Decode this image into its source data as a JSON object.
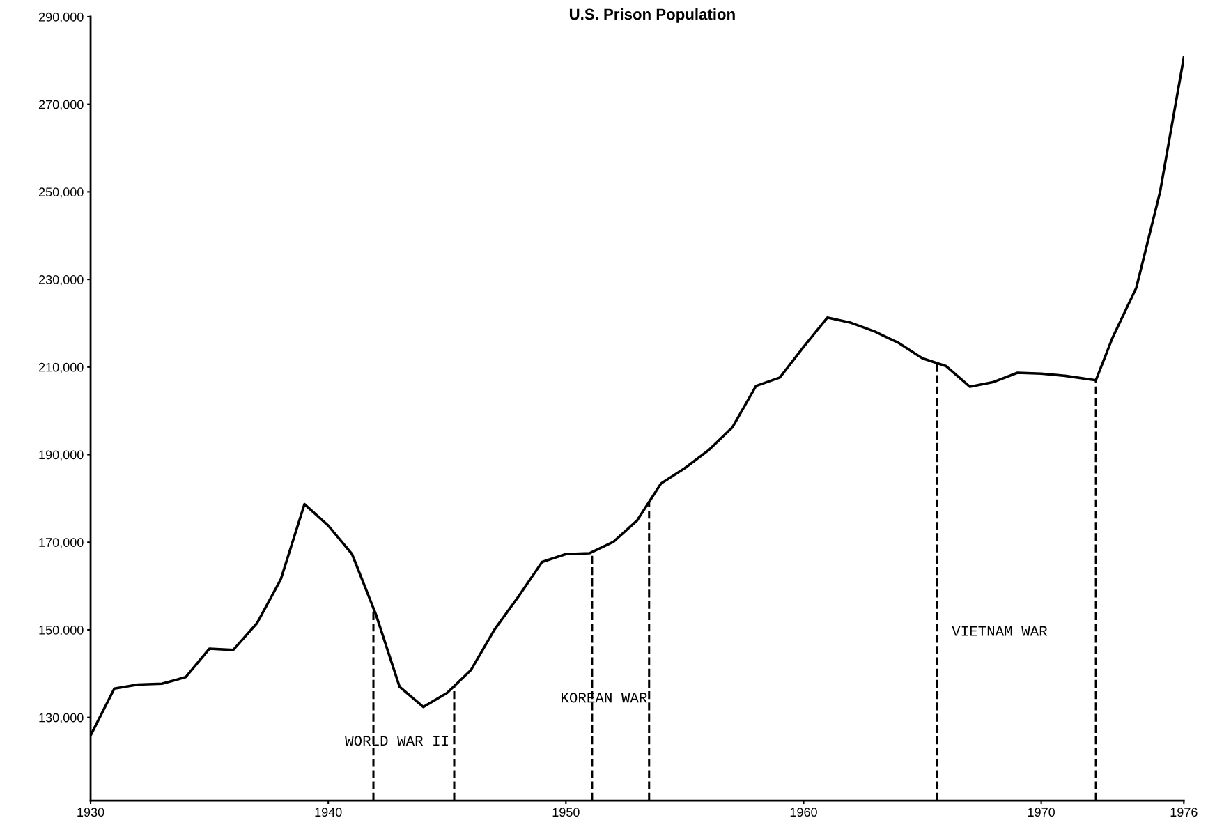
{
  "chart_data": {
    "type": "line",
    "title": "U.S. Prison Population",
    "x": [
      1930,
      1931,
      1932,
      1933,
      1934,
      1935,
      1936,
      1937,
      1938,
      1939,
      1940,
      1941,
      1942,
      1943,
      1944,
      1945,
      1946,
      1947,
      1948,
      1949,
      1950,
      1951,
      1952,
      1953,
      1954,
      1955,
      1956,
      1957,
      1958,
      1959,
      1960,
      1961,
      1962,
      1963,
      1964,
      1965,
      1966,
      1967,
      1968,
      1969,
      1970,
      1971,
      1972.3,
      1973,
      1974,
      1975,
      1976
    ],
    "series": [
      {
        "color": "#000000",
        "values": [
          125900,
          136600,
          137500,
          137700,
          139200,
          145700,
          145400,
          151500,
          161500,
          178700,
          173800,
          167300,
          153600,
          137000,
          132400,
          135600,
          140800,
          150100,
          157600,
          165500,
          167300,
          167500,
          170100,
          175000,
          183400,
          186900,
          191000,
          196200,
          205700,
          207600,
          214600,
          221300,
          220100,
          218100,
          215500,
          212000,
          210200,
          205500,
          206600,
          208700,
          208500,
          208000,
          207000,
          216700,
          228100,
          250000,
          280700
        ]
      }
    ],
    "xlim": [
      1930,
      1976
    ],
    "ylim": [
      111000,
      290000
    ],
    "xticks": [
      1930,
      1940,
      1950,
      1960,
      1970,
      1976
    ],
    "yticks": [
      {
        "value": 130000,
        "label": "130,000"
      },
      {
        "value": 150000,
        "label": "150,000"
      },
      {
        "value": 170000,
        "label": "170,000"
      },
      {
        "value": 190000,
        "label": "190,000"
      },
      {
        "value": 210000,
        "label": "210,000"
      },
      {
        "value": 230000,
        "label": "230,000"
      },
      {
        "value": 250000,
        "label": "250,000"
      },
      {
        "value": 270000,
        "label": "270,000"
      },
      {
        "value": 290000,
        "label": "290,000"
      }
    ],
    "ref_lines": [
      {
        "axis": "x",
        "value": 1941.9,
        "color": "#000000",
        "line_style": "dashed",
        "label": "WORLD WAR II"
      },
      {
        "axis": "x",
        "value": 1945.3,
        "color": "#000000",
        "line_style": "dashed"
      },
      {
        "axis": "x",
        "value": 1951.1,
        "color": "#000000",
        "line_style": "dashed",
        "label": "KOREAN WAR"
      },
      {
        "axis": "x",
        "value": 1953.5,
        "color": "#000000",
        "line_style": "dashed"
      },
      {
        "axis": "x",
        "value": 1965.6,
        "color": "#000000",
        "line_style": "dashed",
        "label": "VIETNAM WAR"
      },
      {
        "axis": "x",
        "value": 1972.3,
        "color": "#000000",
        "line_style": "dashed"
      }
    ],
    "grid": false,
    "legend": false,
    "marker": "none",
    "line_style": "solid"
  }
}
